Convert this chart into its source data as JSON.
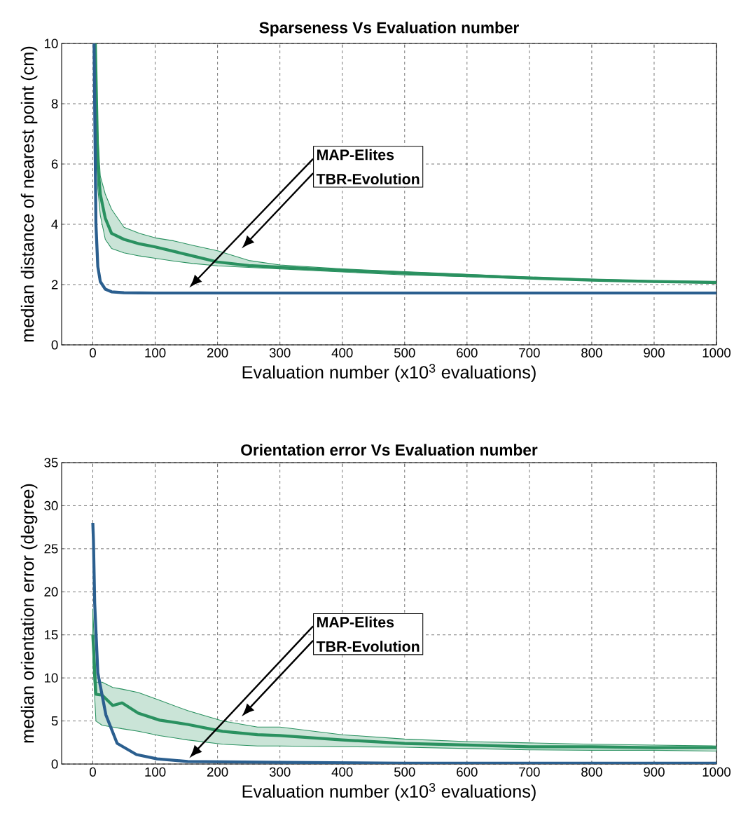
{
  "chart_data": [
    {
      "type": "line",
      "title": "Sparseness Vs Evaluation number",
      "xlabel": "Evaluation number (x10$^{3}$ evaluations)",
      "ylabel": "median distance of nearest point (cm)",
      "xlim": [
        -50,
        1000
      ],
      "ylim": [
        0,
        10
      ],
      "xticks": [
        0,
        100,
        200,
        300,
        400,
        500,
        600,
        700,
        800,
        900,
        1000
      ],
      "yticks": [
        0,
        2,
        4,
        6,
        8,
        10
      ],
      "grid": true,
      "series": [
        {
          "color": "#2a9160",
          "x": [
            4,
            8,
            12,
            20,
            30,
            50,
            75,
            100,
            130,
            160,
            200,
            250,
            300,
            400,
            500,
            600,
            700,
            800,
            900,
            1000
          ],
          "values": [
            10,
            6.0,
            5.0,
            4.2,
            3.7,
            3.5,
            3.35,
            3.25,
            3.1,
            2.95,
            2.75,
            2.63,
            2.58,
            2.47,
            2.38,
            2.3,
            2.22,
            2.15,
            2.1,
            2.07
          ],
          "upper": [
            10,
            7.0,
            5.6,
            5.0,
            4.5,
            3.9,
            3.7,
            3.55,
            3.45,
            3.3,
            3.12,
            2.8,
            2.65,
            2.52,
            2.43,
            2.34,
            2.25,
            2.18,
            2.12,
            2.1
          ],
          "lower": [
            10,
            5.2,
            4.3,
            3.5,
            3.2,
            3.05,
            2.95,
            2.87,
            2.78,
            2.7,
            2.62,
            2.57,
            2.52,
            2.42,
            2.32,
            2.26,
            2.19,
            2.13,
            2.08,
            2.04
          ]
        },
        {
          "color": "#2b5f8f",
          "x": [
            2,
            5,
            8,
            12,
            20,
            30,
            50,
            100,
            150,
            200,
            500,
            1000
          ],
          "values": [
            10,
            4.0,
            2.6,
            2.1,
            1.85,
            1.76,
            1.73,
            1.72,
            1.72,
            1.72,
            1.72,
            1.72
          ]
        }
      ],
      "annotations": [
        "MAP-Elites",
        "TBR-Evolution"
      ]
    },
    {
      "type": "line",
      "title": "Orientation error Vs Evaluation number",
      "xlabel": "Evaluation number (x10$^{3}$ evaluations)",
      "ylabel": "median orientation error (degree)",
      "xlim": [
        -50,
        1000
      ],
      "ylim": [
        0,
        35
      ],
      "xticks": [
        0,
        100,
        200,
        300,
        400,
        500,
        600,
        700,
        800,
        900,
        1000
      ],
      "yticks": [
        0,
        5,
        10,
        15,
        20,
        25,
        30,
        35
      ],
      "grid": true,
      "series": [
        {
          "color": "#2a9160",
          "x": [
            0,
            5,
            15,
            32,
            47,
            73,
            107,
            152,
            208,
            264,
            300,
            400,
            500,
            600,
            700,
            800,
            900,
            1000
          ],
          "values": [
            15,
            8.1,
            8.0,
            6.8,
            7.1,
            5.9,
            5.1,
            4.6,
            3.8,
            3.4,
            3.3,
            2.8,
            2.4,
            2.2,
            2.0,
            2.0,
            1.9,
            1.9
          ],
          "upper": [
            18,
            9.5,
            9.5,
            8.9,
            8.7,
            8.3,
            7.4,
            6.2,
            5.0,
            4.3,
            4.3,
            3.4,
            2.9,
            2.6,
            2.45,
            2.3,
            2.2,
            2.1
          ],
          "lower": [
            12,
            5.0,
            4.5,
            4.3,
            4.1,
            3.8,
            3.3,
            2.8,
            2.3,
            2.1,
            2.1,
            2.0,
            1.95,
            1.8,
            1.65,
            1.6,
            1.6,
            1.5
          ]
        },
        {
          "color": "#2b5f8f",
          "x": [
            0,
            1,
            3,
            8,
            21,
            39,
            70,
            103,
            152,
            300,
            500,
            1000
          ],
          "values": [
            28,
            26,
            18.7,
            10.6,
            5.7,
            2.4,
            1.1,
            0.6,
            0.3,
            0.2,
            0.1,
            0.1
          ]
        }
      ],
      "annotations": [
        "MAP-Elites",
        "TBR-Evolution"
      ]
    }
  ]
}
